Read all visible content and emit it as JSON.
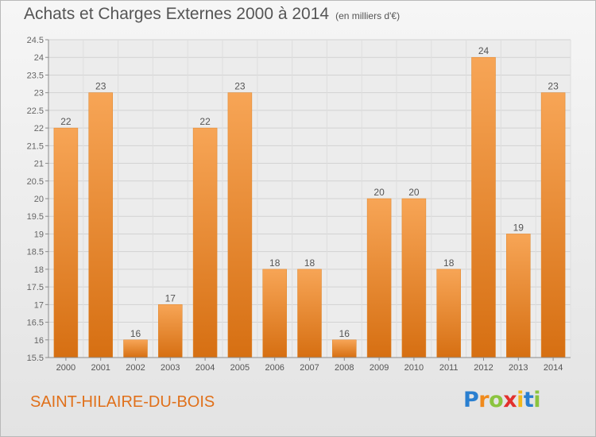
{
  "chart_data": {
    "type": "bar",
    "title": "Achats et Charges Externes 2000 à 2014",
    "subtitle": "(en milliers d'€)",
    "categories": [
      "2000",
      "2001",
      "2002",
      "2003",
      "2004",
      "2005",
      "2006",
      "2007",
      "2008",
      "2009",
      "2010",
      "2011",
      "2012",
      "2013",
      "2014"
    ],
    "values": [
      22,
      23,
      16,
      17,
      22,
      23,
      18,
      18,
      16,
      20,
      20,
      18,
      24,
      19,
      23
    ],
    "ylim": [
      15.5,
      24.5
    ],
    "yticks": [
      "15.5",
      "16",
      "16.5",
      "17",
      "17.5",
      "18",
      "18.5",
      "19",
      "19.5",
      "20",
      "20.5",
      "21",
      "21.5",
      "22",
      "22.5",
      "23",
      "23.5",
      "24",
      "24.5"
    ],
    "grid": true,
    "bar_color": "#f0922e"
  },
  "footer": {
    "city": "SAINT-HILAIRE-DU-BOIS",
    "logo_letters": [
      "P",
      "r",
      "o",
      "x",
      "i",
      "t",
      "i"
    ],
    "logo_colors": [
      "#2a7fd0",
      "#f08a1c",
      "#8bc43f",
      "#e2302d",
      "#f2b81b",
      "#2a7fd0",
      "#8bc43f"
    ]
  }
}
